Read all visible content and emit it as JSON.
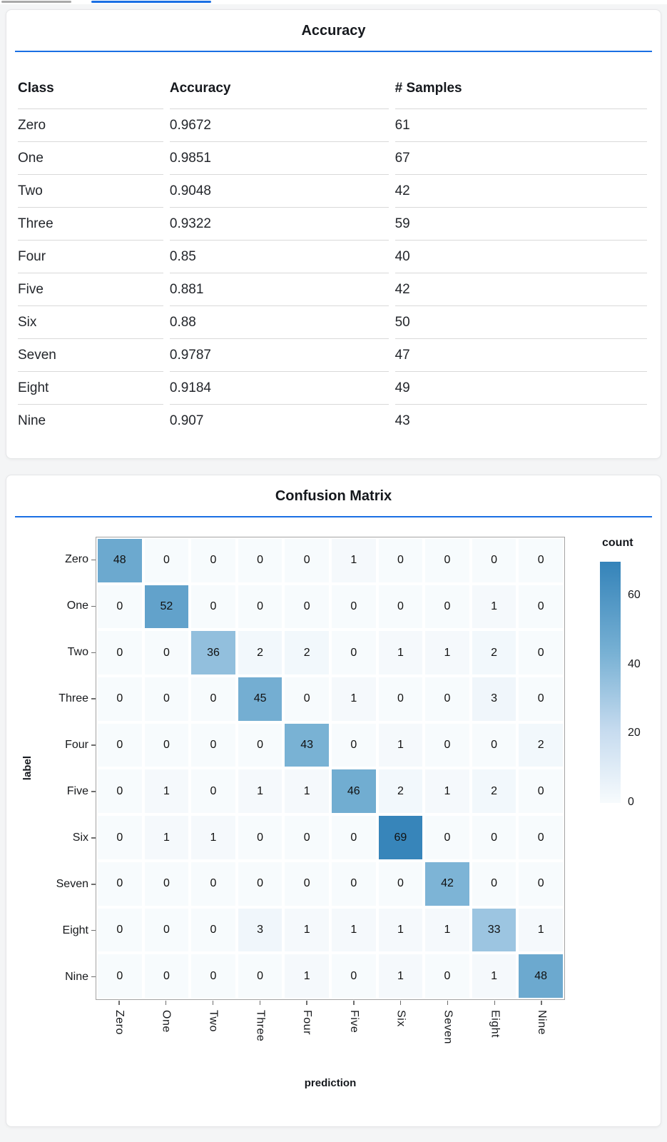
{
  "theme": {
    "accent": "#1a6fe4",
    "scrollbar_gray": "#a9a9a9",
    "card_bg": "#ffffff",
    "page_bg": "#f4f5f6"
  },
  "chart_data": [
    {
      "type": "table",
      "title": "Accuracy",
      "columns": [
        "Class",
        "Accuracy",
        "# Samples"
      ],
      "rows": [
        [
          "Zero",
          "0.9672",
          "61"
        ],
        [
          "One",
          "0.9851",
          "67"
        ],
        [
          "Two",
          "0.9048",
          "42"
        ],
        [
          "Three",
          "0.9322",
          "59"
        ],
        [
          "Four",
          "0.85",
          "40"
        ],
        [
          "Five",
          "0.881",
          "42"
        ],
        [
          "Six",
          "0.88",
          "50"
        ],
        [
          "Seven",
          "0.9787",
          "47"
        ],
        [
          "Eight",
          "0.9184",
          "49"
        ],
        [
          "Nine",
          "0.907",
          "43"
        ]
      ]
    },
    {
      "type": "heatmap",
      "title": "Confusion Matrix",
      "xlabel": "prediction",
      "ylabel": "label",
      "x_categories": [
        "Zero",
        "One",
        "Two",
        "Three",
        "Four",
        "Five",
        "Six",
        "Seven",
        "Eight",
        "Nine"
      ],
      "y_categories": [
        "Zero",
        "One",
        "Two",
        "Three",
        "Four",
        "Five",
        "Six",
        "Seven",
        "Eight",
        "Nine"
      ],
      "matrix": [
        [
          48,
          0,
          0,
          0,
          0,
          1,
          0,
          0,
          0,
          0
        ],
        [
          0,
          52,
          0,
          0,
          0,
          0,
          0,
          0,
          1,
          0
        ],
        [
          0,
          0,
          36,
          2,
          2,
          0,
          1,
          1,
          2,
          0
        ],
        [
          0,
          0,
          0,
          45,
          0,
          1,
          0,
          0,
          3,
          0
        ],
        [
          0,
          0,
          0,
          0,
          43,
          0,
          1,
          0,
          0,
          2
        ],
        [
          0,
          1,
          0,
          1,
          1,
          46,
          2,
          1,
          2,
          0
        ],
        [
          0,
          1,
          1,
          0,
          0,
          0,
          69,
          0,
          0,
          0
        ],
        [
          0,
          0,
          0,
          0,
          0,
          0,
          0,
          42,
          0,
          0
        ],
        [
          0,
          0,
          0,
          3,
          1,
          1,
          1,
          1,
          33,
          1
        ],
        [
          0,
          0,
          0,
          0,
          1,
          0,
          1,
          0,
          1,
          48
        ]
      ],
      "color_scale": {
        "min": 0,
        "max": 70,
        "stops": [
          [
            0.0,
            "#f7fbfd"
          ],
          [
            0.3,
            "#c6dbef"
          ],
          [
            0.62,
            "#78b1d4"
          ],
          [
            1.0,
            "#3483b9"
          ]
        ]
      },
      "legend": {
        "title": "count",
        "ticks": [
          60,
          40,
          20,
          0
        ],
        "position": "right"
      },
      "grid": false
    }
  ]
}
